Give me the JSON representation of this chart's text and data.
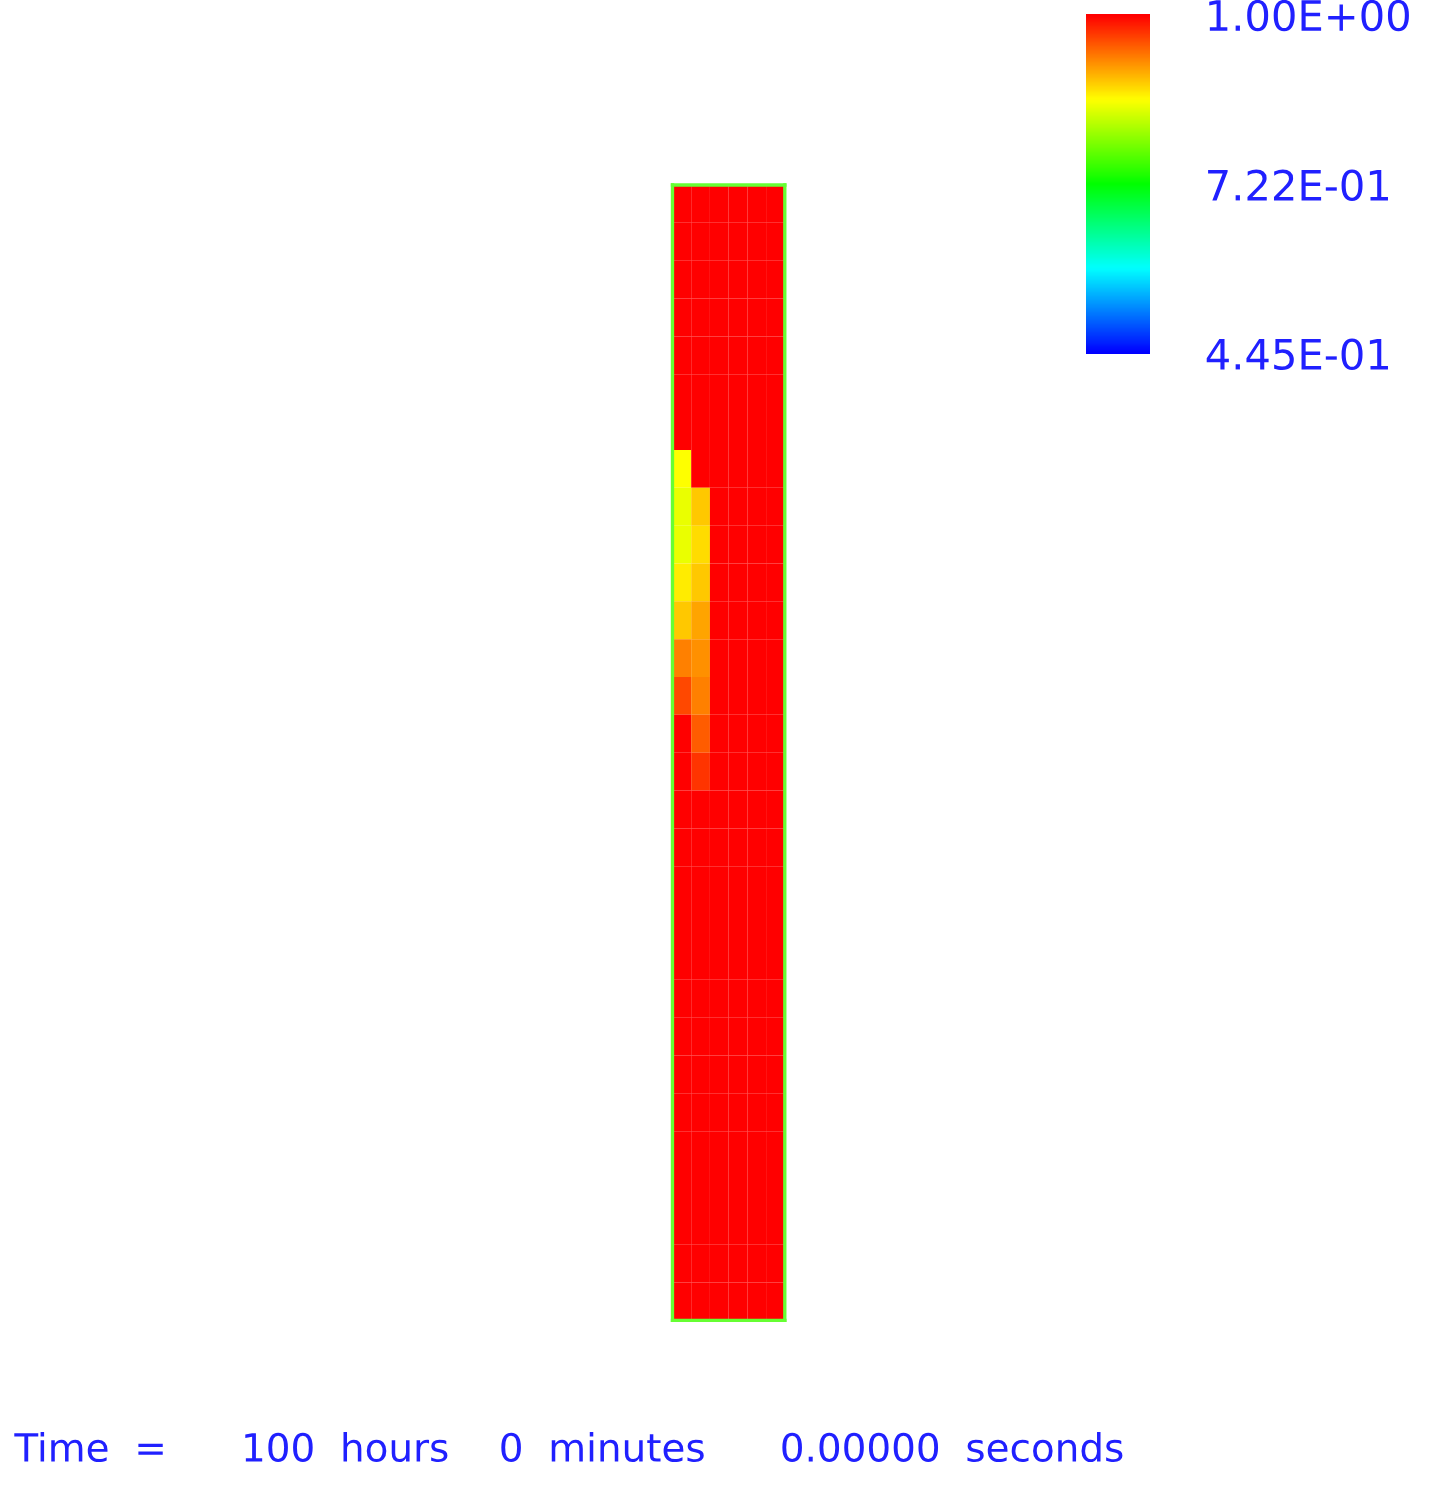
{
  "chart_data": {
    "type": "heatmap",
    "categories": [
      null,
      null,
      null,
      null,
      null,
      null
    ],
    "y_categories": [
      null,
      null,
      null,
      null,
      null,
      null,
      null,
      null,
      null,
      null,
      null,
      null,
      null,
      null,
      null,
      null,
      null,
      null,
      null,
      null,
      null,
      null,
      null,
      null,
      null,
      null,
      null,
      null,
      null,
      null
    ],
    "cells": [
      [
        1,
        1,
        1,
        1,
        1,
        1
      ],
      [
        1,
        1,
        1,
        1,
        1,
        1
      ],
      [
        1,
        1,
        1,
        1,
        1,
        1
      ],
      [
        1,
        1,
        1,
        1,
        1,
        1
      ],
      [
        1,
        1,
        1,
        1,
        1,
        1
      ],
      [
        1,
        1,
        1,
        1,
        1,
        1
      ],
      [
        1,
        1,
        1,
        1,
        1,
        1
      ],
      [
        0.86,
        1,
        1,
        1,
        1,
        1
      ],
      [
        0.85,
        0.89,
        1,
        1,
        1,
        1
      ],
      [
        0.85,
        0.88,
        1,
        1,
        1,
        1
      ],
      [
        0.87,
        0.89,
        1,
        1,
        1,
        1
      ],
      [
        0.89,
        0.91,
        1,
        1,
        1,
        1
      ],
      [
        0.93,
        0.92,
        1,
        1,
        1,
        1
      ],
      [
        0.96,
        0.93,
        1,
        1,
        1,
        1
      ],
      [
        1,
        0.95,
        1,
        1,
        1,
        1
      ],
      [
        1,
        0.97,
        1,
        1,
        1,
        1
      ],
      [
        1,
        1,
        1,
        1,
        1,
        1
      ],
      [
        1,
        1,
        1,
        1,
        1,
        1
      ],
      [
        1,
        1,
        1,
        1,
        1,
        1
      ],
      [
        1,
        1,
        1,
        1,
        1,
        1
      ],
      [
        1,
        1,
        1,
        1,
        1,
        1
      ],
      [
        1,
        1,
        1,
        1,
        1,
        1
      ],
      [
        1,
        1,
        1,
        1,
        1,
        1
      ],
      [
        1,
        1,
        1,
        1,
        1,
        1
      ],
      [
        1,
        1,
        1,
        1,
        1,
        1
      ],
      [
        1,
        1,
        1,
        1,
        1,
        1
      ],
      [
        1,
        1,
        1,
        1,
        1,
        1
      ],
      [
        1,
        1,
        1,
        1,
        1,
        1
      ],
      [
        1,
        1,
        1,
        1,
        1,
        1
      ],
      [
        1,
        1,
        1,
        1,
        1,
        1
      ]
    ],
    "clim": [
      0.445,
      1.0
    ],
    "cticks": [
      {
        "value": 1.0,
        "label": "1.00E+00"
      },
      {
        "value": 0.722,
        "label": "7.22E-01"
      },
      {
        "value": 0.445,
        "label": "4.45E-01"
      }
    ],
    "annotations": [
      "Time  =      100  hours    0  minutes      0.00000  seconds"
    ]
  }
}
